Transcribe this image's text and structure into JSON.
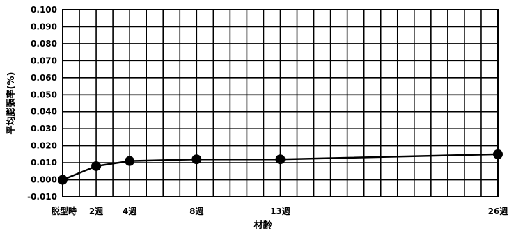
{
  "chart_data": {
    "type": "line",
    "title": "",
    "xlabel": "材齢",
    "ylabel": "平均膨張率(%)",
    "ylim": [
      -0.01,
      0.1
    ],
    "ytick_step": 0.01,
    "ytick_labels": [
      "0.100",
      "0.090",
      "0.080",
      "0.070",
      "0.060",
      "0.050",
      "0.040",
      "0.030",
      "0.020",
      "0.010",
      "0.000",
      "-0.010"
    ],
    "x_range_weeks": [
      0,
      26
    ],
    "x_grid_count": 26,
    "grid": true,
    "legend": "none",
    "categories": [
      "脱型時",
      "2週",
      "4週",
      "8週",
      "13週",
      "26週"
    ],
    "x_weeks": [
      0,
      2,
      4,
      8,
      13,
      26
    ],
    "series": [
      {
        "values": [
          0.0,
          0.008,
          0.011,
          0.012,
          0.012,
          0.015
        ],
        "color": "#000000"
      }
    ]
  }
}
